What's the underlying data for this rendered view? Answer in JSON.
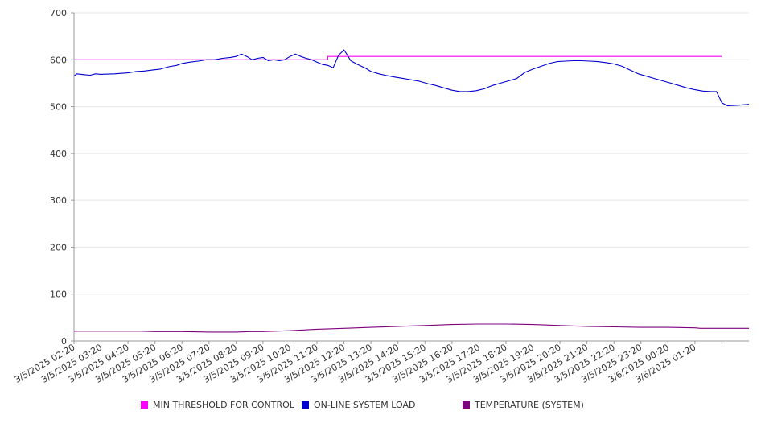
{
  "chart_data": {
    "type": "line",
    "title": "",
    "xlabel": "",
    "ylabel": "",
    "ylim": [
      0,
      700
    ],
    "yticks": [
      "0",
      "100",
      "200",
      "300",
      "400",
      "500",
      "600",
      "700"
    ],
    "grid": "horizontal",
    "legend_position": "bottom",
    "x_tick_labels": [
      "3/5/2025 02:20",
      "3/5/2025 03:20",
      "3/5/2025 04:20",
      "3/5/2025 05:20",
      "3/5/2025 06:20",
      "3/5/2025 07:20",
      "3/5/2025 08:20",
      "3/5/2025 09:20",
      "3/5/2025 10:20",
      "3/5/2025 11:20",
      "3/5/2025 12:20",
      "3/5/2025 13:20",
      "3/5/2025 14:20",
      "3/5/2025 15:20",
      "3/5/2025 16:20",
      "3/5/2025 17:20",
      "3/5/2025 18:20",
      "3/5/2025 19:20",
      "3/5/2025 20:20",
      "3/5/2025 21:20",
      "3/5/2025 22:20",
      "3/5/2025 23:20",
      "3/6/2025 00:20",
      "3/6/2025 01:20"
    ],
    "x_hours": [
      0,
      1,
      2,
      3,
      4,
      5,
      6,
      7,
      8,
      9,
      10,
      11,
      12,
      13,
      14,
      15,
      16,
      17,
      18,
      19,
      20,
      21,
      22,
      23,
      24
    ],
    "x_start_label": "3/5/2025 02:20",
    "series": [
      {
        "name": "MIN THRESHOLD FOR CONTROL",
        "color": "#ff00ff",
        "points": [
          [
            0,
            600
          ],
          [
            9.4,
            600
          ],
          [
            9.4,
            607
          ],
          [
            24,
            607
          ]
        ]
      },
      {
        "name": "ON-LINE SYSTEM LOAD",
        "color": "#0000cc",
        "points": [
          [
            0,
            565
          ],
          [
            0.1,
            570
          ],
          [
            0.4,
            568
          ],
          [
            0.6,
            567
          ],
          [
            0.8,
            570
          ],
          [
            1.0,
            569
          ],
          [
            1.5,
            570
          ],
          [
            2.0,
            572
          ],
          [
            2.3,
            575
          ],
          [
            2.6,
            576
          ],
          [
            2.9,
            578
          ],
          [
            3.2,
            580
          ],
          [
            3.5,
            585
          ],
          [
            3.8,
            588
          ],
          [
            4.0,
            592
          ],
          [
            4.3,
            595
          ],
          [
            4.6,
            597
          ],
          [
            4.9,
            600
          ],
          [
            5.2,
            600
          ],
          [
            5.5,
            603
          ],
          [
            5.8,
            605
          ],
          [
            6.0,
            607
          ],
          [
            6.2,
            612
          ],
          [
            6.4,
            607
          ],
          [
            6.6,
            600
          ],
          [
            6.8,
            603
          ],
          [
            7.0,
            605
          ],
          [
            7.2,
            598
          ],
          [
            7.4,
            600
          ],
          [
            7.6,
            598
          ],
          [
            7.8,
            600
          ],
          [
            8.0,
            607
          ],
          [
            8.2,
            612
          ],
          [
            8.4,
            607
          ],
          [
            8.6,
            603
          ],
          [
            8.8,
            600
          ],
          [
            9.0,
            595
          ],
          [
            9.2,
            590
          ],
          [
            9.4,
            588
          ],
          [
            9.6,
            583
          ],
          [
            9.8,
            610
          ],
          [
            9.9,
            615
          ],
          [
            10.0,
            621
          ],
          [
            10.1,
            612
          ],
          [
            10.25,
            598
          ],
          [
            10.5,
            590
          ],
          [
            10.8,
            582
          ],
          [
            11.0,
            575
          ],
          [
            11.3,
            570
          ],
          [
            11.6,
            566
          ],
          [
            11.9,
            563
          ],
          [
            12.2,
            560
          ],
          [
            12.5,
            557
          ],
          [
            12.8,
            554
          ],
          [
            13.1,
            549
          ],
          [
            13.4,
            545
          ],
          [
            13.7,
            540
          ],
          [
            14.0,
            535
          ],
          [
            14.3,
            532
          ],
          [
            14.6,
            532
          ],
          [
            14.9,
            534
          ],
          [
            15.2,
            538
          ],
          [
            15.5,
            545
          ],
          [
            15.8,
            550
          ],
          [
            16.1,
            555
          ],
          [
            16.4,
            560
          ],
          [
            16.7,
            573
          ],
          [
            17.0,
            580
          ],
          [
            17.3,
            586
          ],
          [
            17.6,
            592
          ],
          [
            17.9,
            596
          ],
          [
            18.2,
            597
          ],
          [
            18.5,
            598
          ],
          [
            18.8,
            598
          ],
          [
            19.1,
            597
          ],
          [
            19.4,
            596
          ],
          [
            19.7,
            594
          ],
          [
            20.0,
            591
          ],
          [
            20.3,
            586
          ],
          [
            20.6,
            578
          ],
          [
            20.9,
            570
          ],
          [
            21.2,
            565
          ],
          [
            21.5,
            560
          ],
          [
            21.8,
            555
          ],
          [
            22.1,
            550
          ],
          [
            22.4,
            545
          ],
          [
            22.7,
            540
          ],
          [
            23.0,
            536
          ],
          [
            23.3,
            533
          ],
          [
            23.6,
            532
          ],
          [
            23.8,
            532
          ],
          [
            23.9,
            520
          ],
          [
            24.0,
            508
          ],
          [
            24.2,
            502
          ],
          [
            24.6,
            503
          ],
          [
            25.0,
            505
          ]
        ]
      },
      {
        "name": "TEMPERATURE (SYSTEM)",
        "color": "#800080",
        "points": [
          [
            0,
            21
          ],
          [
            2.5,
            21
          ],
          [
            3,
            20
          ],
          [
            4,
            20
          ],
          [
            5,
            19
          ],
          [
            6,
            19
          ],
          [
            6.5,
            20
          ],
          [
            7,
            20
          ],
          [
            8,
            22
          ],
          [
            9,
            25
          ],
          [
            10,
            27
          ],
          [
            11,
            29
          ],
          [
            12,
            31
          ],
          [
            13,
            33
          ],
          [
            14,
            35
          ],
          [
            15,
            36
          ],
          [
            16,
            36
          ],
          [
            17,
            35
          ],
          [
            18,
            33
          ],
          [
            19,
            31
          ],
          [
            20,
            30
          ],
          [
            21,
            29
          ],
          [
            22,
            29
          ],
          [
            23,
            28
          ],
          [
            23.2,
            27
          ],
          [
            24,
            27
          ],
          [
            25,
            27
          ]
        ]
      }
    ]
  }
}
